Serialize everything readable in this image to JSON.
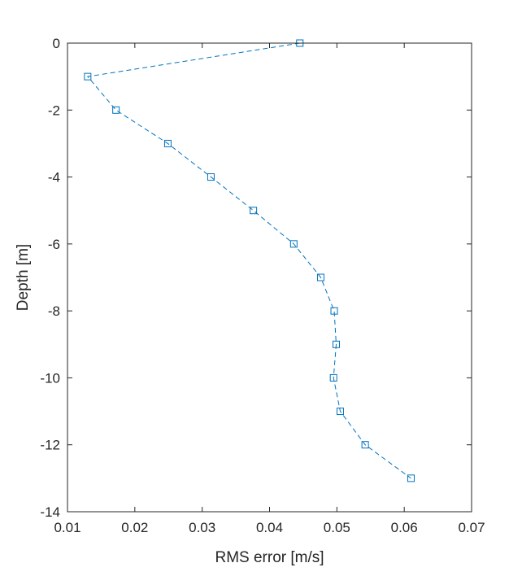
{
  "chart_data": {
    "type": "line",
    "title": "",
    "xlabel": "RMS error [m/s]",
    "ylabel": "Depth [m]",
    "xlim": [
      0.01,
      0.07
    ],
    "ylim": [
      -14,
      0
    ],
    "xticks": [
      0.01,
      0.02,
      0.03,
      0.04,
      0.05,
      0.06,
      0.07
    ],
    "xtick_labels": [
      "0.01",
      "0.02",
      "0.03",
      "0.04",
      "0.05",
      "0.06",
      "0.07"
    ],
    "yticks": [
      0,
      -2,
      -4,
      -6,
      -8,
      -10,
      -12,
      -14
    ],
    "ytick_labels": [
      "0",
      "-2",
      "-4",
      "-6",
      "-8",
      "-10",
      "-12",
      "-14"
    ],
    "grid": false,
    "legend": "none",
    "series": [
      {
        "line_style": "dashed",
        "marker": "square",
        "color": "#0072BD",
        "x": [
          0.0445,
          0.013,
          0.0172,
          0.0249,
          0.0313,
          0.0376,
          0.0436,
          0.0476,
          0.0496,
          0.0499,
          0.0495,
          0.0505,
          0.0542,
          0.061
        ],
        "y": [
          0,
          -1,
          -2,
          -3,
          -4,
          -5,
          -6,
          -7,
          -8,
          -9,
          -10,
          -11,
          -12,
          -13
        ]
      }
    ]
  }
}
